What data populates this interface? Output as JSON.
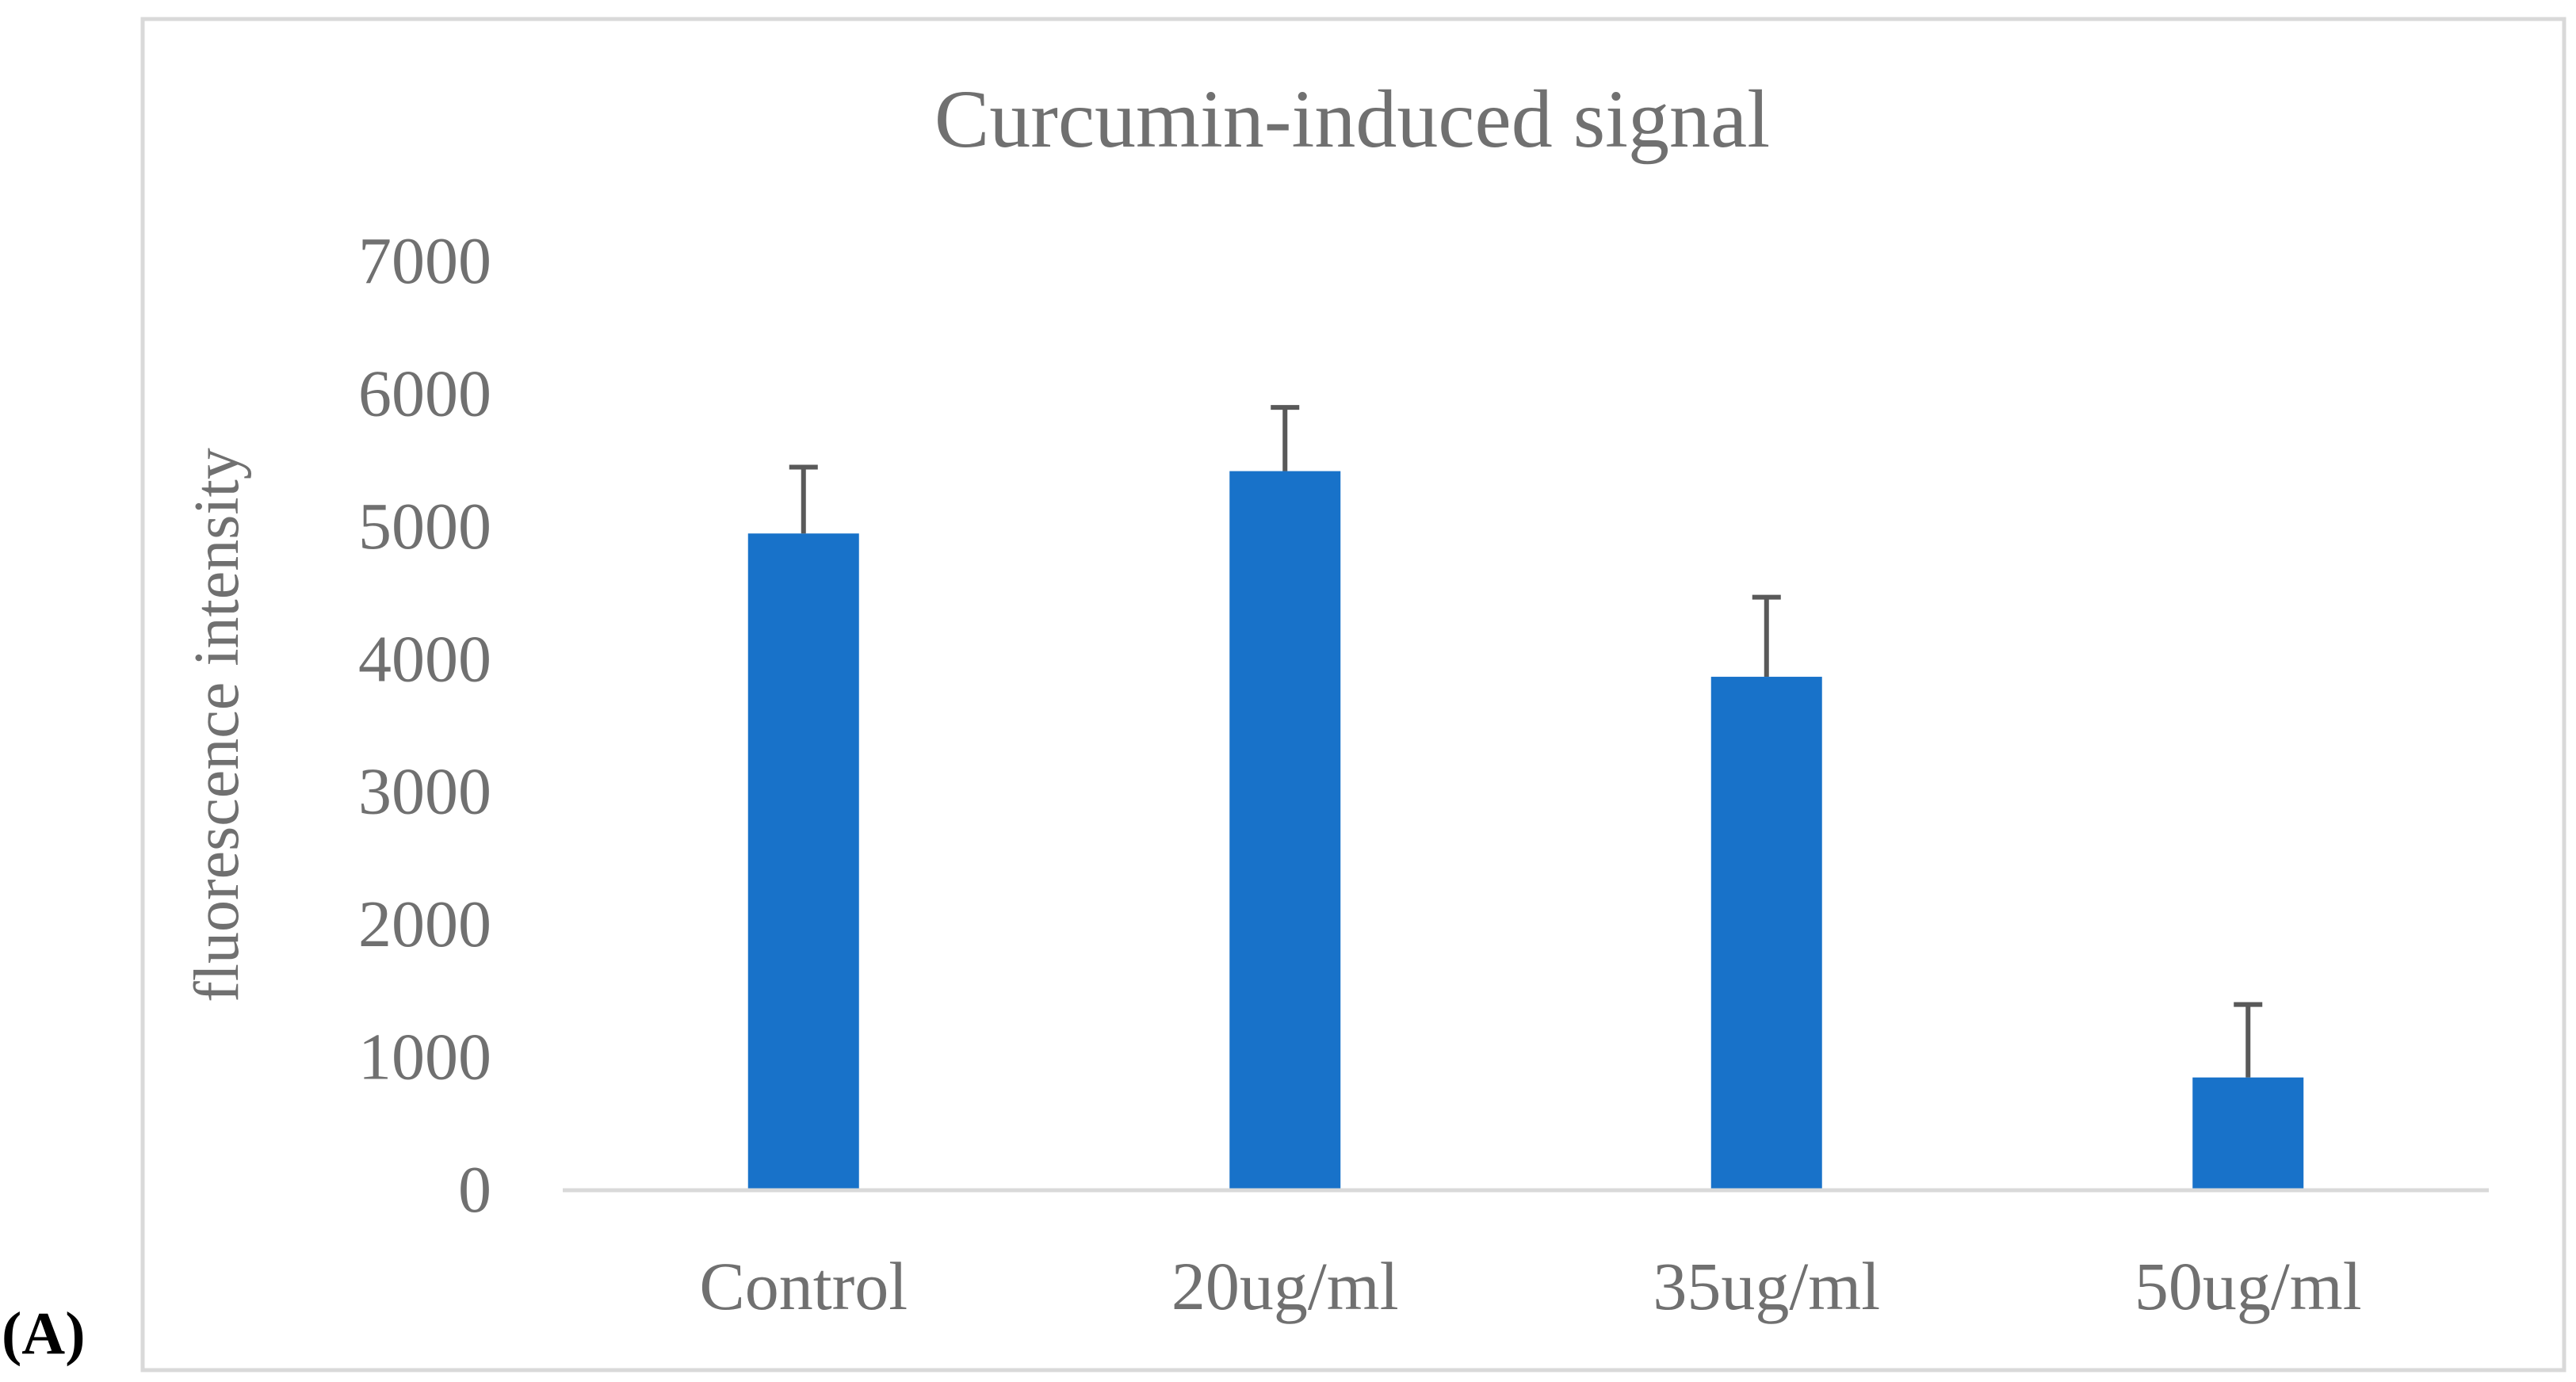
{
  "panel_label": "(A)",
  "chart_data": {
    "type": "bar",
    "title": "Curcumin-induced signal",
    "xlabel": "",
    "ylabel": "fluorescence intensity",
    "categories": [
      "Control",
      "20ug/ml",
      "35ug/ml",
      "50ug/ml"
    ],
    "values": [
      4950,
      5420,
      3870,
      850
    ],
    "error_upper": [
      500,
      480,
      600,
      550
    ],
    "ylim": [
      0,
      7000
    ],
    "yticks": [
      0,
      1000,
      2000,
      3000,
      4000,
      5000,
      6000,
      7000
    ],
    "ytick_labels": [
      "0",
      "1000",
      "2000",
      "3000",
      "4000",
      "5000",
      "6000",
      "7000"
    ],
    "grid": false,
    "legend": "none",
    "colors": {
      "bar": "#1872C9",
      "error_bar": "#595959",
      "axis_text": "#707070",
      "axis_line": "#D9D9D9",
      "frame": "#D9D9D9",
      "panel_label": "#000000"
    }
  }
}
